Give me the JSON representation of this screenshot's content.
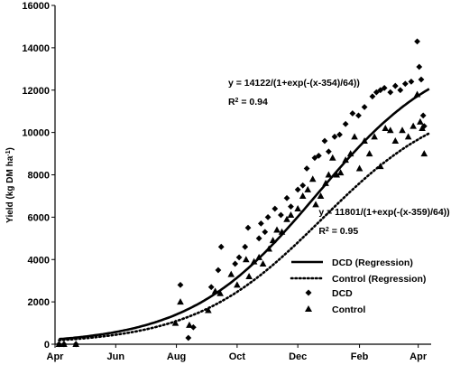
{
  "chart_data": {
    "type": "scatter",
    "title": "",
    "xlabel": "",
    "ylabel": "Yield (kg DM ha",
    "ylabel_sup": "-1",
    "ylabel_close": ")",
    "xlim": [
      91,
      469
    ],
    "ylim": [
      0,
      16000
    ],
    "y_ticks": [
      0,
      2000,
      4000,
      6000,
      8000,
      10000,
      12000,
      14000,
      16000
    ],
    "x_ticks": [
      {
        "label": "Apr",
        "x": 91
      },
      {
        "label": "Jun",
        "x": 152
      },
      {
        "label": "Aug",
        "x": 213
      },
      {
        "label": "Oct",
        "x": 274
      },
      {
        "label": "Dec",
        "x": 335
      },
      {
        "label": "Feb",
        "x": 397
      },
      {
        "label": "Apr",
        "x": 456
      }
    ],
    "series": [
      {
        "name": "DCD (Regression)",
        "kind": "line",
        "style": "solid",
        "model": {
          "a": 14122,
          "b": 354,
          "c": 64
        },
        "x_range": [
          95,
          467
        ]
      },
      {
        "name": "Control (Regression)",
        "kind": "line",
        "style": "dotted",
        "model": {
          "a": 11801,
          "b": 359,
          "c": 64
        },
        "x_range": [
          95,
          467
        ]
      },
      {
        "name": "DCD",
        "kind": "scatter",
        "marker": "diamond",
        "points": [
          [
            95,
            0
          ],
          [
            100,
            0
          ],
          [
            112,
            0
          ],
          [
            217,
            2800
          ],
          [
            225,
            300
          ],
          [
            230,
            800
          ],
          [
            248,
            2700
          ],
          [
            255,
            3500
          ],
          [
            258,
            4600
          ],
          [
            272,
            3800
          ],
          [
            276,
            4100
          ],
          [
            282,
            4600
          ],
          [
            285,
            5500
          ],
          [
            296,
            5000
          ],
          [
            298,
            5700
          ],
          [
            302,
            5300
          ],
          [
            305,
            6000
          ],
          [
            312,
            6400
          ],
          [
            318,
            6100
          ],
          [
            324,
            6900
          ],
          [
            328,
            6500
          ],
          [
            335,
            7300
          ],
          [
            340,
            7500
          ],
          [
            344,
            8300
          ],
          [
            352,
            8800
          ],
          [
            356,
            8900
          ],
          [
            362,
            9600
          ],
          [
            366,
            9100
          ],
          [
            372,
            9800
          ],
          [
            377,
            9900
          ],
          [
            383,
            10400
          ],
          [
            390,
            10900
          ],
          [
            396,
            10800
          ],
          [
            402,
            11200
          ],
          [
            410,
            11700
          ],
          [
            414,
            11900
          ],
          [
            418,
            12000
          ],
          [
            422,
            12100
          ],
          [
            428,
            11900
          ],
          [
            433,
            12200
          ],
          [
            438,
            12000
          ],
          [
            443,
            12300
          ],
          [
            449,
            12400
          ],
          [
            455,
            14300
          ],
          [
            457,
            13100
          ],
          [
            459,
            12500
          ],
          [
            461,
            10800
          ],
          [
            462,
            10300
          ]
        ]
      },
      {
        "name": "Control",
        "kind": "scatter",
        "marker": "triangle",
        "points": [
          [
            95,
            0
          ],
          [
            100,
            0
          ],
          [
            112,
            0
          ],
          [
            212,
            1000
          ],
          [
            217,
            2000
          ],
          [
            226,
            900
          ],
          [
            245,
            1600
          ],
          [
            252,
            2500
          ],
          [
            257,
            2400
          ],
          [
            268,
            3300
          ],
          [
            274,
            2800
          ],
          [
            283,
            4000
          ],
          [
            286,
            3200
          ],
          [
            291,
            3900
          ],
          [
            296,
            4100
          ],
          [
            300,
            3800
          ],
          [
            306,
            4500
          ],
          [
            310,
            4900
          ],
          [
            314,
            5400
          ],
          [
            319,
            5300
          ],
          [
            324,
            5900
          ],
          [
            328,
            6100
          ],
          [
            335,
            6400
          ],
          [
            340,
            7000
          ],
          [
            345,
            7300
          ],
          [
            350,
            7800
          ],
          [
            353,
            6600
          ],
          [
            358,
            7000
          ],
          [
            363,
            7600
          ],
          [
            366,
            8000
          ],
          [
            370,
            8800
          ],
          [
            374,
            8000
          ],
          [
            378,
            8100
          ],
          [
            383,
            8700
          ],
          [
            388,
            9000
          ],
          [
            392,
            9800
          ],
          [
            397,
            8300
          ],
          [
            402,
            9600
          ],
          [
            407,
            9000
          ],
          [
            412,
            9800
          ],
          [
            418,
            8400
          ],
          [
            423,
            10200
          ],
          [
            428,
            10100
          ],
          [
            433,
            9600
          ],
          [
            440,
            10100
          ],
          [
            446,
            9800
          ],
          [
            451,
            10300
          ],
          [
            455,
            11800
          ],
          [
            458,
            10500
          ],
          [
            460,
            10200
          ],
          [
            462,
            9000
          ]
        ]
      }
    ],
    "annotations": [
      {
        "text": "y = 14122/(1+exp(-(x-354)/64))",
        "anchor": [
          265,
          12200
        ]
      },
      {
        "text_r2": "R",
        "sup": "2",
        "text_after": " = 0.94",
        "anchor": [
          265,
          11300
        ]
      },
      {
        "text": "y = 11801/(1+exp(-(x-359)/64))",
        "anchor": [
          356,
          6100
        ]
      },
      {
        "text_r2": "R",
        "sup": "2",
        "text_after": " = 0.95",
        "anchor": [
          356,
          5200
        ]
      }
    ],
    "legend": {
      "placement": "bottom-right",
      "items": [
        "DCD (Regression)",
        "Control (Regression)",
        "DCD",
        "Control"
      ]
    },
    "grid": false
  }
}
